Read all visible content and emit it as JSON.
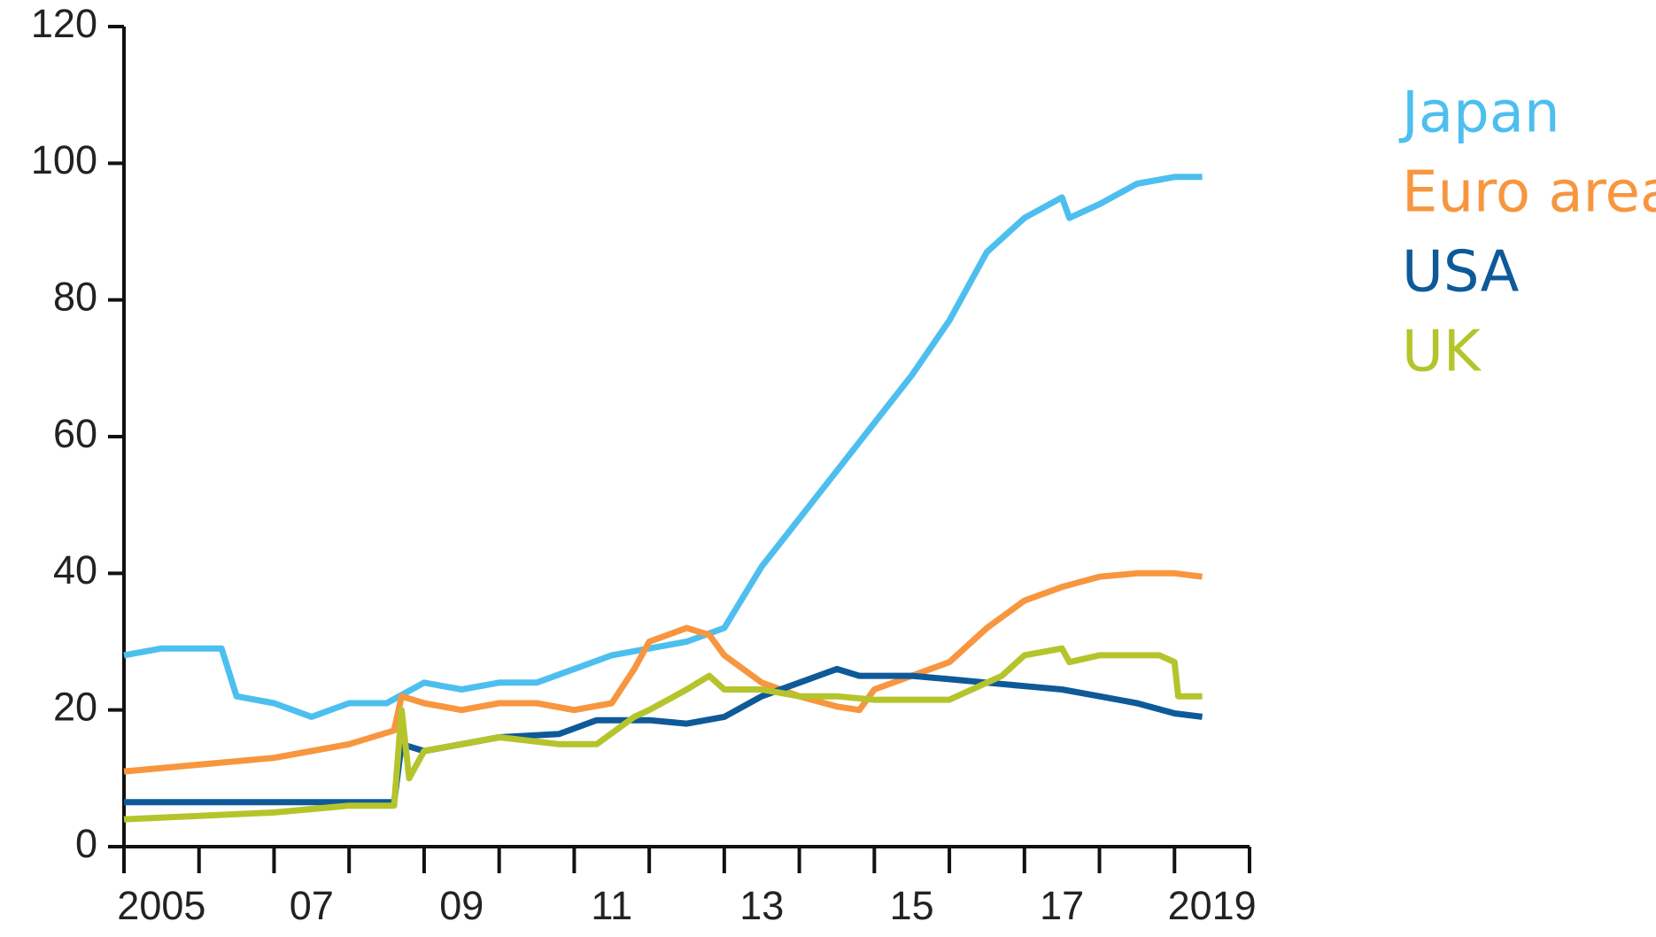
{
  "chart_data": {
    "type": "line",
    "xlim": [
      2005,
      2020
    ],
    "xticks": [
      2005,
      2006,
      2007,
      2008,
      2009,
      2010,
      2011,
      2012,
      2013,
      2014,
      2015,
      2016,
      2017,
      2018,
      2019,
      2020
    ],
    "xlabels": [
      {
        "value": 2005.5,
        "label": "2005"
      },
      {
        "value": 2007.5,
        "label": "07"
      },
      {
        "value": 2009.5,
        "label": "09"
      },
      {
        "value": 2011.5,
        "label": "11"
      },
      {
        "value": 2013.5,
        "label": "13"
      },
      {
        "value": 2015.5,
        "label": "15"
      },
      {
        "value": 2017.5,
        "label": "17"
      },
      {
        "value": 2019.5,
        "label": "2019"
      }
    ],
    "ylim": [
      0,
      120
    ],
    "yticks": [
      0,
      20,
      40,
      60,
      80,
      100,
      120
    ],
    "series": [
      {
        "name": "Japan",
        "color": "#4dbfef",
        "x": [
          2005,
          2005.5,
          2006,
          2006.3,
          2006.5,
          2007,
          2007.5,
          2008,
          2008.5,
          2009,
          2009.5,
          2010,
          2010.5,
          2011,
          2011.5,
          2012,
          2012.5,
          2013,
          2013.5,
          2014,
          2014.5,
          2015,
          2015.5,
          2016,
          2016.5,
          2017,
          2017.5,
          2017.6,
          2018,
          2018.5,
          2019,
          2019.37
        ],
        "values": [
          28,
          29,
          29,
          29,
          22,
          21,
          19,
          21,
          21,
          24,
          23,
          24,
          24,
          26,
          28,
          29,
          30,
          32,
          41,
          48,
          55,
          62,
          69,
          77,
          87,
          92,
          95,
          92,
          94,
          97,
          98,
          98
        ]
      },
      {
        "name": "Euro area",
        "color": "#f7963f",
        "x": [
          2005,
          2006,
          2007,
          2007.5,
          2008,
          2008.6,
          2008.7,
          2009,
          2009.5,
          2010,
          2010.5,
          2011,
          2011.5,
          2011.8,
          2012,
          2012.5,
          2012.8,
          2013,
          2013.5,
          2014,
          2014.5,
          2014.8,
          2015,
          2015.5,
          2016,
          2016.5,
          2017,
          2017.5,
          2018,
          2018.5,
          2019,
          2019.37
        ],
        "values": [
          11,
          12,
          13,
          14,
          15,
          17,
          22,
          21,
          20,
          21,
          21,
          20,
          21,
          26,
          30,
          32,
          31,
          28,
          24,
          22,
          20.5,
          20,
          23,
          25,
          27,
          32,
          36,
          38,
          39.5,
          40,
          40,
          39.5
        ]
      },
      {
        "name": "USA",
        "color": "#0e5a99",
        "x": [
          2005,
          2008.6,
          2008.7,
          2009,
          2009.5,
          2010,
          2010.8,
          2011.3,
          2012,
          2012.5,
          2013,
          2013.5,
          2014,
          2014.5,
          2014.8,
          2015.5,
          2016,
          2016.5,
          2017,
          2017.5,
          2018,
          2018.5,
          2019,
          2019.37
        ],
        "values": [
          6.5,
          6.5,
          15,
          14,
          15,
          16,
          16.5,
          18.5,
          18.5,
          18,
          19,
          22,
          24,
          26,
          25,
          25,
          24.5,
          24,
          23.5,
          23,
          22,
          21,
          19.5,
          19
        ]
      },
      {
        "name": "UK",
        "color": "#b5c42b",
        "x": [
          2005,
          2007,
          2008,
          2008.6,
          2008.7,
          2008.8,
          2009,
          2009.5,
          2010,
          2010.8,
          2011.3,
          2011.8,
          2012,
          2012.5,
          2012.8,
          2013,
          2013.5,
          2014,
          2014.5,
          2015,
          2016,
          2016.7,
          2017,
          2017.5,
          2017.6,
          2018,
          2018.8,
          2019,
          2019.05,
          2019.37
        ],
        "values": [
          4,
          5,
          6,
          6,
          20,
          10,
          14,
          15,
          16,
          15,
          15,
          19,
          20,
          23,
          25,
          23,
          23,
          22,
          22,
          21.5,
          21.5,
          25,
          28,
          29,
          27,
          28,
          28,
          27,
          22,
          22
        ]
      }
    ]
  }
}
